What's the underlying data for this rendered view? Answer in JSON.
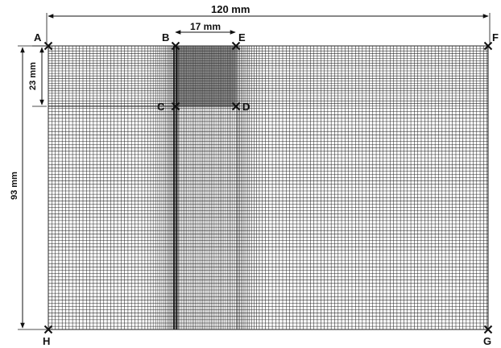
{
  "diagram": {
    "dimensions": {
      "width": "120 mm",
      "height": "93 mm",
      "top_depth": "23 mm",
      "top_width": "17 mm"
    },
    "points": {
      "A": "A",
      "B": "B",
      "C": "C",
      "D": "D",
      "E": "E",
      "F": "F",
      "G": "G",
      "H": "H"
    },
    "colors": {
      "mesh_line": "#2a2a2a",
      "dense_block": "#3c3c3c",
      "annotation": "#111111"
    }
  }
}
